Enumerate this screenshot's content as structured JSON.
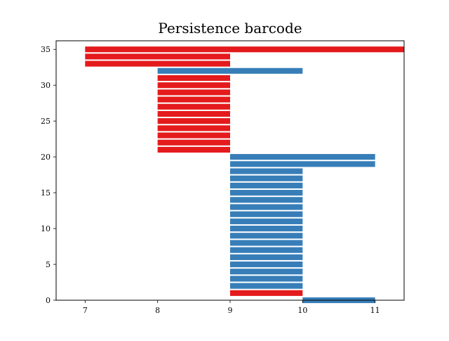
{
  "chart_data": {
    "type": "bar",
    "orientation": "horizontal-barcode",
    "title": "Persistence barcode",
    "xlabel": "",
    "ylabel": "",
    "xlim": [
      6.6,
      11.4
    ],
    "ylim": [
      0,
      36.2
    ],
    "x_ticks": [
      7,
      8,
      9,
      10,
      11
    ],
    "y_ticks": [
      0,
      5,
      10,
      15,
      20,
      25,
      30,
      35
    ],
    "grid": false,
    "colors": {
      "dim0": "#e41a1c",
      "dim1": "#377eb8"
    },
    "bars": [
      {
        "y": 0,
        "start": 10,
        "end": 11,
        "color": "dim1"
      },
      {
        "y": 1,
        "start": 9,
        "end": 10,
        "color": "dim0"
      },
      {
        "y": 2,
        "start": 9,
        "end": 10,
        "color": "dim1"
      },
      {
        "y": 3,
        "start": 9,
        "end": 10,
        "color": "dim1"
      },
      {
        "y": 4,
        "start": 9,
        "end": 10,
        "color": "dim1"
      },
      {
        "y": 5,
        "start": 9,
        "end": 10,
        "color": "dim1"
      },
      {
        "y": 6,
        "start": 9,
        "end": 10,
        "color": "dim1"
      },
      {
        "y": 7,
        "start": 9,
        "end": 10,
        "color": "dim1"
      },
      {
        "y": 8,
        "start": 9,
        "end": 10,
        "color": "dim1"
      },
      {
        "y": 9,
        "start": 9,
        "end": 10,
        "color": "dim1"
      },
      {
        "y": 10,
        "start": 9,
        "end": 10,
        "color": "dim1"
      },
      {
        "y": 11,
        "start": 9,
        "end": 10,
        "color": "dim1"
      },
      {
        "y": 12,
        "start": 9,
        "end": 10,
        "color": "dim1"
      },
      {
        "y": 13,
        "start": 9,
        "end": 10,
        "color": "dim1"
      },
      {
        "y": 14,
        "start": 9,
        "end": 10,
        "color": "dim1"
      },
      {
        "y": 15,
        "start": 9,
        "end": 10,
        "color": "dim1"
      },
      {
        "y": 16,
        "start": 9,
        "end": 10,
        "color": "dim1"
      },
      {
        "y": 17,
        "start": 9,
        "end": 10,
        "color": "dim1"
      },
      {
        "y": 18,
        "start": 9,
        "end": 10,
        "color": "dim1"
      },
      {
        "y": 19,
        "start": 9,
        "end": 11,
        "color": "dim1"
      },
      {
        "y": 20,
        "start": 9,
        "end": 11,
        "color": "dim1"
      },
      {
        "y": 21,
        "start": 8,
        "end": 9,
        "color": "dim0"
      },
      {
        "y": 22,
        "start": 8,
        "end": 9,
        "color": "dim0"
      },
      {
        "y": 23,
        "start": 8,
        "end": 9,
        "color": "dim0"
      },
      {
        "y": 24,
        "start": 8,
        "end": 9,
        "color": "dim0"
      },
      {
        "y": 25,
        "start": 8,
        "end": 9,
        "color": "dim0"
      },
      {
        "y": 26,
        "start": 8,
        "end": 9,
        "color": "dim0"
      },
      {
        "y": 27,
        "start": 8,
        "end": 9,
        "color": "dim0"
      },
      {
        "y": 28,
        "start": 8,
        "end": 9,
        "color": "dim0"
      },
      {
        "y": 29,
        "start": 8,
        "end": 9,
        "color": "dim0"
      },
      {
        "y": 30,
        "start": 8,
        "end": 9,
        "color": "dim0"
      },
      {
        "y": 31,
        "start": 8,
        "end": 9,
        "color": "dim0"
      },
      {
        "y": 32,
        "start": 8,
        "end": 10,
        "color": "dim1"
      },
      {
        "y": 33,
        "start": 7,
        "end": 9,
        "color": "dim0"
      },
      {
        "y": 34,
        "start": 7,
        "end": 9,
        "color": "dim0"
      },
      {
        "y": 35,
        "start": 7,
        "end": 11.4,
        "color": "dim0"
      }
    ]
  }
}
